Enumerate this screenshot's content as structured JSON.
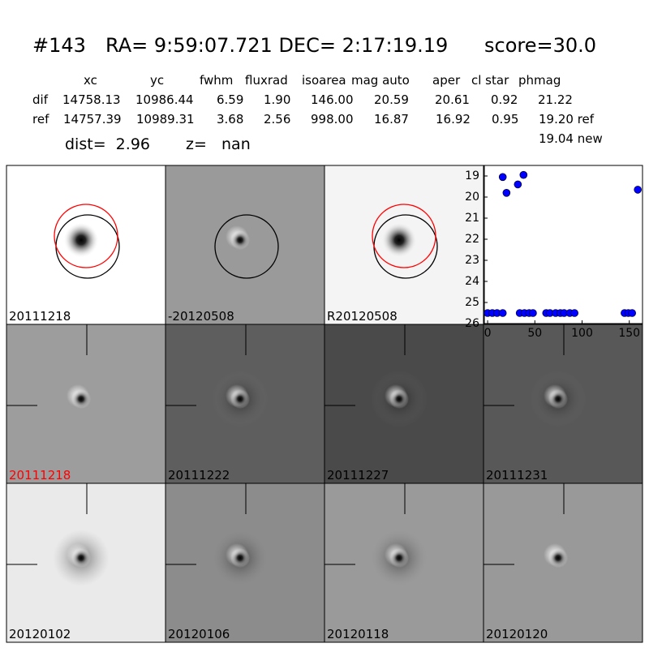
{
  "header": {
    "id": "#143",
    "coords": "RA= 9:59:07.721 DEC= 2:17:19.19",
    "score": "score=30.0"
  },
  "table": {
    "columns": [
      "xc",
      "yc",
      "fwhm",
      "fluxrad",
      "isoarea",
      "mag auto",
      "aper",
      "cl star",
      "phmag"
    ],
    "rows": [
      [
        "dif",
        "14758.13",
        "10986.44",
        "6.59",
        "1.90",
        "146.00",
        "20.59",
        "20.61",
        "0.92",
        "21.22"
      ],
      [
        "ref",
        "14757.39",
        "10989.31",
        "3.68",
        "2.56",
        "998.00",
        "16.87",
        "16.92",
        "0.95",
        "19.20 ref"
      ]
    ],
    "extra": "19.04 new"
  },
  "summary": {
    "dist": "dist=  2.96",
    "z": "z=   nan"
  },
  "panels": [
    "20111218",
    "-20120508",
    "R20120508",
    "20111218",
    "20111222",
    "20111227",
    "20111231",
    "20120102",
    "20120106",
    "20120118",
    "20120120"
  ],
  "chart_data": {
    "type": "scatter",
    "color": "#0000ff",
    "x": [
      0,
      5,
      10,
      16,
      34,
      39,
      44,
      48,
      62,
      66,
      72,
      77,
      81,
      87,
      92,
      145,
      149,
      153,
      16,
      20,
      32,
      38,
      159
    ],
    "y": [
      25.5,
      25.5,
      25.5,
      25.5,
      25.5,
      25.5,
      25.5,
      25.5,
      25.5,
      25.5,
      25.5,
      25.5,
      25.5,
      25.5,
      25.5,
      25.5,
      25.5,
      25.5,
      19.05,
      19.8,
      19.4,
      18.95,
      19.65
    ],
    "xlim": [
      -3.5,
      164
    ],
    "ylim": [
      26,
      18.5
    ],
    "xticks": [
      0,
      50,
      100,
      150
    ],
    "yticks": [
      19,
      20,
      21,
      22,
      23,
      24,
      25,
      26
    ]
  }
}
